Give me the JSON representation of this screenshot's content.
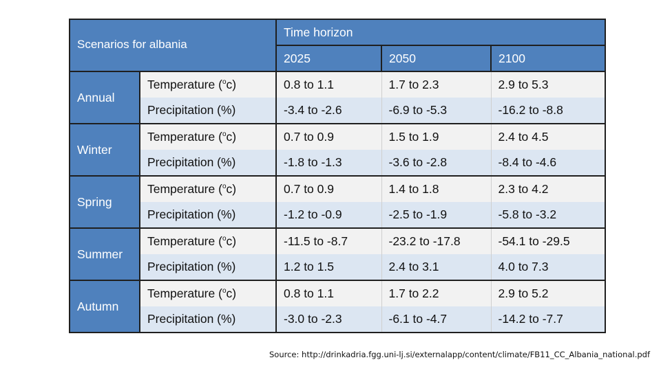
{
  "table": {
    "title": "Scenarios for albania",
    "time_horizon_label": "Time horizon",
    "years": [
      "2025",
      "2050",
      "2100"
    ],
    "temperature_label_prefix": "Temperature (",
    "temperature_label_sup": "o",
    "temperature_label_suffix": "c)",
    "precipitation_label": "Precipitation (%)",
    "seasons": [
      {
        "name": "Annual",
        "temperature": [
          "0.8 to 1.1",
          "1.7 to 2.3",
          "2.9 to 5.3"
        ],
        "precipitation": [
          "-3.4 to -2.6",
          "-6.9 to -5.3",
          "-16.2 to -8.8"
        ]
      },
      {
        "name": "Winter",
        "temperature": [
          "0.7 to 0.9",
          "1.5 to 1.9",
          "2.4 to 4.5"
        ],
        "precipitation": [
          "-1.8 to -1.3",
          "-3.6 to -2.8",
          "-8.4 to -4.6"
        ]
      },
      {
        "name": "Spring",
        "temperature": [
          "0.7 to 0.9",
          "1.4 to 1.8",
          "2.3 to 4.2"
        ],
        "precipitation": [
          "-1.2 to -0.9",
          "-2.5 to -1.9",
          "-5.8 to -3.2"
        ]
      },
      {
        "name": "Summer",
        "temperature": [
          "-11.5 to -8.7",
          "-23.2 to -17.8",
          "-54.1 to -29.5"
        ],
        "precipitation": [
          "1.2 to 1.5",
          "2.4 to 3.1",
          "4.0 to 7.3"
        ]
      },
      {
        "name": "Autumn",
        "temperature": [
          "0.8 to 1.1",
          "1.7 to 2.2",
          "2.9 to 5.2"
        ],
        "precipitation": [
          "-3.0 to -2.3",
          "-6.1 to -4.7",
          "-14.2 to -7.7"
        ]
      }
    ]
  },
  "source": "Source: http://drinkadria.fgg.uni-lj.si/externalapp/content/climate/FB11_CC_Albania_national.pdf",
  "colors": {
    "header_blue": "#4f81bd",
    "row_light": "#f2f2f2",
    "row_blue": "#dce6f2"
  }
}
